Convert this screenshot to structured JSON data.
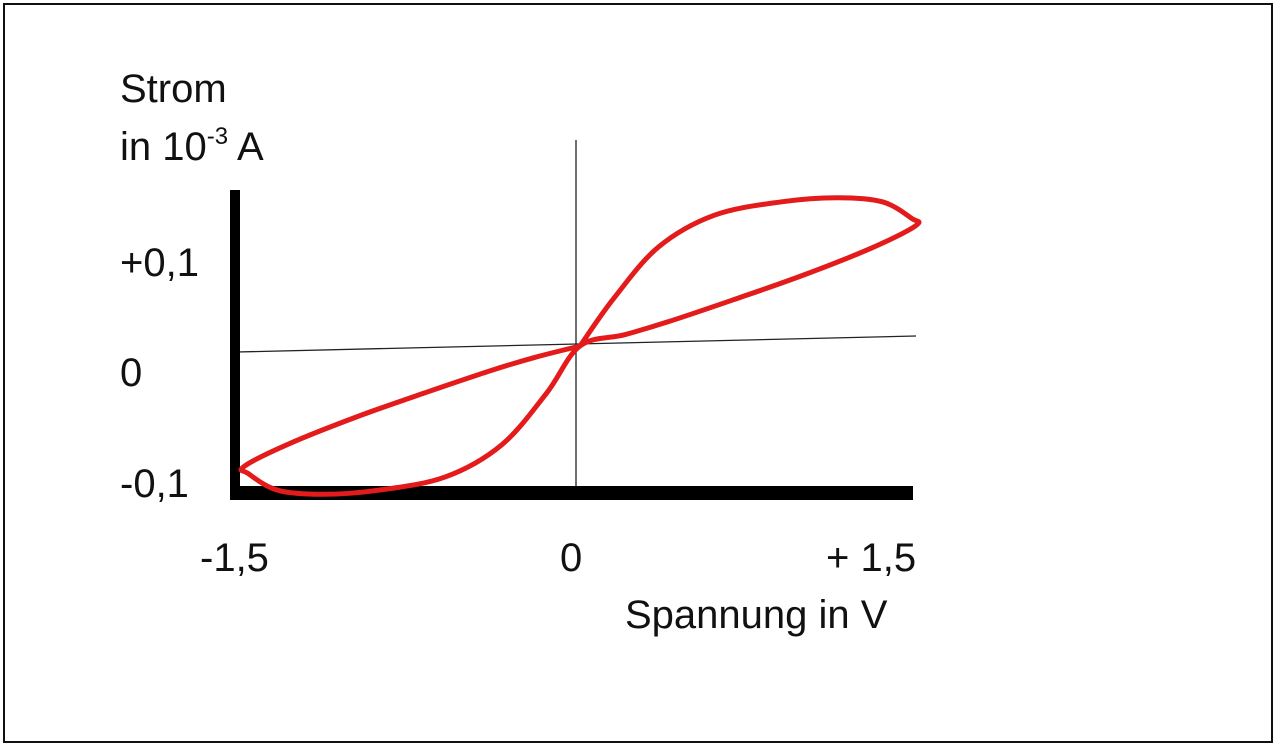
{
  "chart_data": {
    "type": "line",
    "title": "",
    "ylabel_line1": "Strom",
    "ylabel_line2_prefix": "in 10",
    "ylabel_exponent": "-3",
    "ylabel_line2_suffix": " A",
    "xlabel": "Spannung in V",
    "x_ticks": [
      {
        "value": -1.5,
        "label": "-1,5"
      },
      {
        "value": 0,
        "label": "0"
      },
      {
        "value": 1.5,
        "label": "+ 1,5"
      }
    ],
    "y_ticks": [
      {
        "value": 0.1,
        "label": "+0,1"
      },
      {
        "value": 0,
        "label": "0"
      },
      {
        "value": -0.1,
        "label": "-0,1"
      }
    ],
    "xlim": [
      -1.5,
      1.5
    ],
    "ylim": [
      -0.13,
      0.18
    ],
    "grid": false,
    "legend": "none",
    "series": [
      {
        "color": "#e31b1b",
        "points": [
          [
            0,
            0
          ],
          [
            0.15,
            0.046
          ],
          [
            0.35,
            0.096
          ],
          [
            0.6,
            0.127
          ],
          [
            0.9,
            0.14
          ],
          [
            1.15,
            0.144
          ],
          [
            1.35,
            0.14
          ],
          [
            1.48,
            0.124
          ],
          [
            1.5,
            0.117
          ],
          [
            1.3,
            0.095
          ],
          [
            1.0,
            0.069
          ],
          [
            0.7,
            0.046
          ],
          [
            0.4,
            0.024
          ],
          [
            0.2,
            0.011
          ],
          [
            0,
            0
          ],
          [
            -0.15,
            -0.046
          ],
          [
            -0.35,
            -0.096
          ],
          [
            -0.6,
            -0.127
          ],
          [
            -0.9,
            -0.14
          ],
          [
            -1.15,
            -0.144
          ],
          [
            -1.35,
            -0.14
          ],
          [
            -1.48,
            -0.124
          ],
          [
            -1.5,
            -0.117
          ],
          [
            -1.3,
            -0.095
          ],
          [
            -1.0,
            -0.069
          ],
          [
            -0.7,
            -0.046
          ],
          [
            -0.4,
            -0.024
          ],
          [
            -0.2,
            -0.011
          ],
          [
            0,
            0
          ]
        ]
      }
    ]
  }
}
